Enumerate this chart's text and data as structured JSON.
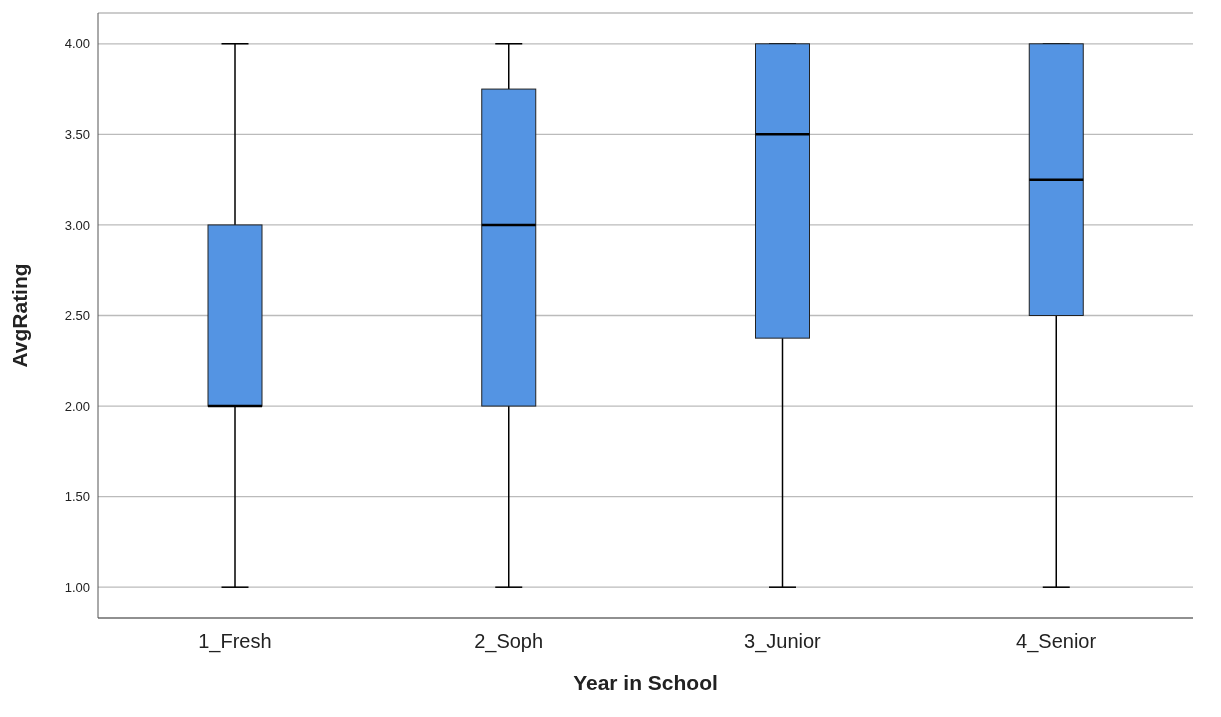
{
  "chart_data": {
    "type": "box",
    "xlabel": "Year in School",
    "ylabel": "AvgRating",
    "categories": [
      "1_Fresh",
      "2_Soph",
      "3_Junior",
      "4_Senior"
    ],
    "color": "#5494e3",
    "boxes": [
      {
        "low": 1,
        "q1": 2,
        "median": 2,
        "q3": 3,
        "high": 4
      },
      {
        "low": 1,
        "q1": 2,
        "median": 3,
        "q3": 3.75,
        "high": 4
      },
      {
        "low": 1,
        "q1": 2.375,
        "median": 3.5,
        "q3": 4,
        "high": 4
      },
      {
        "low": 1,
        "q1": 2.5,
        "median": 3.25,
        "q3": 4,
        "high": 4
      }
    ],
    "ylim": [
      0.83,
      4.17
    ],
    "yticks": [
      {
        "value": 1,
        "label": "1.00"
      },
      {
        "value": 1.5,
        "label": "1.50"
      },
      {
        "value": 2,
        "label": "2.00"
      },
      {
        "value": 2.5,
        "label": "2.50"
      },
      {
        "value": 3,
        "label": "3.00"
      },
      {
        "value": 3.5,
        "label": "3.50"
      },
      {
        "value": 4,
        "label": "4.00"
      }
    ],
    "grid": "y"
  }
}
